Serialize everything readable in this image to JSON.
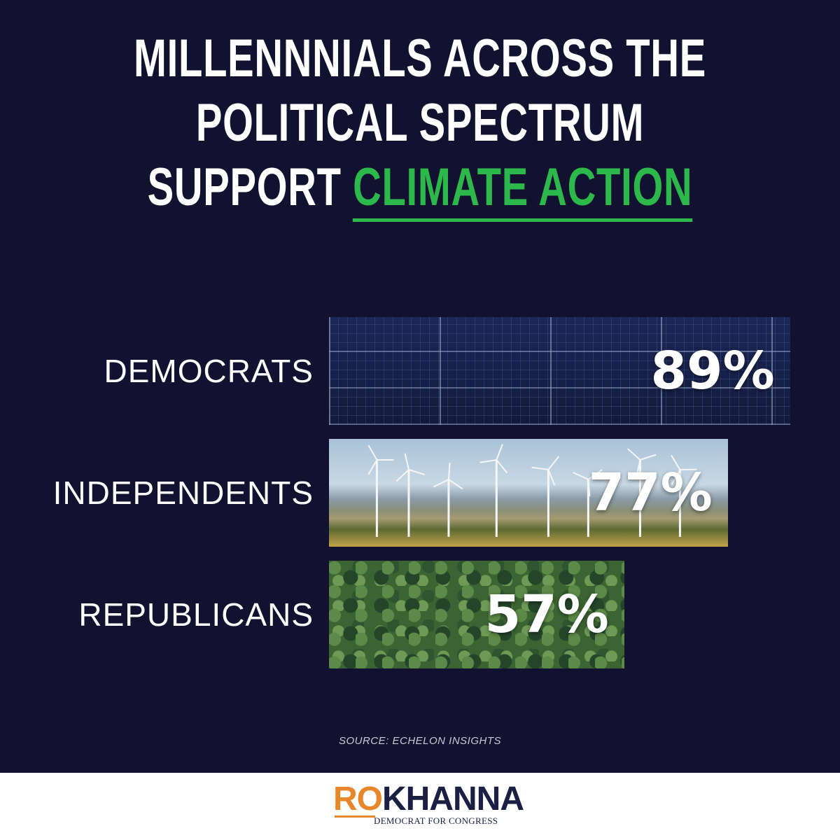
{
  "title": {
    "line1": "MILLENNNIALS ACROSS THE",
    "line2": "POLITICAL SPECTRUM",
    "line3_prefix": "SUPPORT ",
    "line3_accent": "CLIMATE ACTION"
  },
  "chart_data": {
    "type": "bar",
    "orientation": "horizontal",
    "categories": [
      "DEMOCRATS",
      "INDEPENDENTS",
      "REPUBLICANS"
    ],
    "values": [
      89,
      77,
      57
    ],
    "value_labels": [
      "89%",
      "77%",
      "57%"
    ],
    "title": "MILLENNNIALS ACROSS THE POLITICAL SPECTRUM SUPPORT CLIMATE ACTION",
    "xlabel": "",
    "ylabel": "",
    "xlim": [
      0,
      100
    ],
    "grid": false,
    "legend": "none"
  },
  "source": "SOURCE: ECHELON INSIGHTS",
  "footer": {
    "logo_ro": "RO",
    "logo_khanna": "KHANNA",
    "logo_sub": "DEMOCRAT FOR CONGRESS"
  },
  "colors": {
    "background": "#121230",
    "accent_green": "#2db84c",
    "logo_orange": "#e8862a",
    "logo_navy": "#1b1f44",
    "text": "#ffffff"
  }
}
